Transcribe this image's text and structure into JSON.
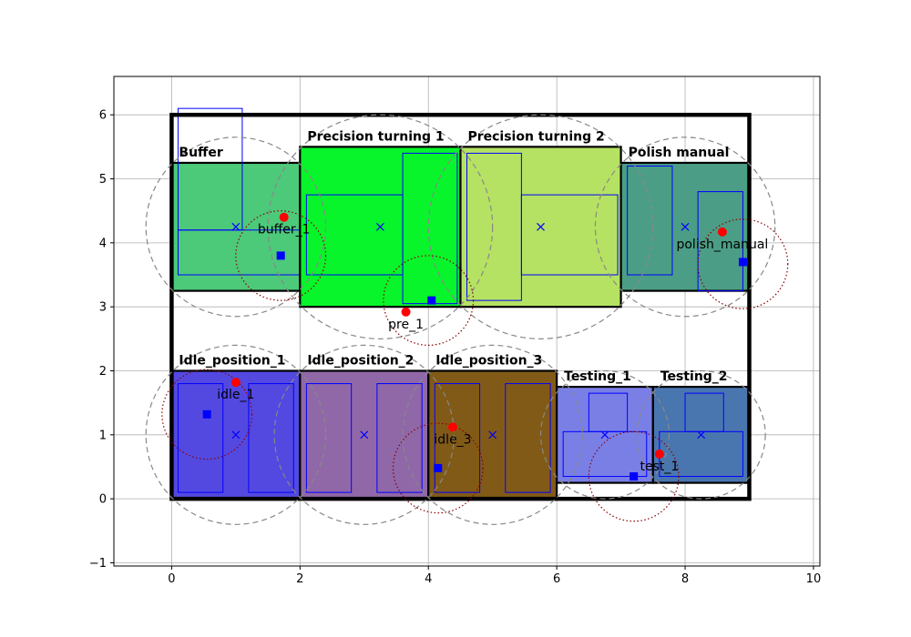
{
  "chart_data": {
    "type": "scatter",
    "title": "",
    "xlabel": "",
    "ylabel": "",
    "xlim": [
      -0.9,
      10.1
    ],
    "ylim": [
      -1.05,
      6.6
    ],
    "xticks": [
      0,
      2,
      4,
      6,
      8,
      10
    ],
    "yticks": [
      -1,
      0,
      1,
      2,
      3,
      4,
      5,
      6
    ],
    "grid": true,
    "colors": {
      "boundary": "#000000",
      "station_outline": "#0000ff",
      "center_marker": "#0000ff",
      "point_marker": "#ff0000",
      "square_marker": "#0000ff",
      "dashed_circle": "#888888",
      "dotted_circle": "#8b0000"
    },
    "boundary": {
      "x0": 0,
      "y0": 0,
      "x1": 9,
      "y1": 6
    },
    "zones": [
      {
        "name": "Buffer",
        "x0": 0,
        "y0": 3.25,
        "x1": 2,
        "y1": 5.25,
        "color": "#4dc97a",
        "center": [
          1,
          4.25
        ],
        "radius": 1.4,
        "parts": [
          [
            0.1,
            4.2,
            1,
            1.9
          ],
          [
            0.1,
            3.5,
            1.9,
            0.7
          ]
        ]
      },
      {
        "name": "Precision turning 1",
        "x0": 2,
        "y0": 3,
        "x1": 4.5,
        "y1": 5.5,
        "color": "#07f52a",
        "center": [
          3.25,
          4.25
        ],
        "radius": 1.75,
        "parts": [
          [
            2.1,
            3.5,
            1.5,
            1.25
          ],
          [
            3.6,
            3.05,
            0.85,
            2.35
          ]
        ]
      },
      {
        "name": "Precision turning 2",
        "x0": 4.5,
        "y0": 3,
        "x1": 7,
        "y1": 5.5,
        "color": "#b5e262",
        "center": [
          5.75,
          4.25
        ],
        "radius": 1.75,
        "parts": [
          [
            4.6,
            3.1,
            0.85,
            2.3
          ],
          [
            5.45,
            3.5,
            1.5,
            1.25
          ]
        ]
      },
      {
        "name": "Polish manual",
        "x0": 7,
        "y0": 3.25,
        "x1": 9,
        "y1": 5.25,
        "color": "#4b9e85",
        "center": [
          8,
          4.25
        ],
        "radius": 1.4,
        "parts": [
          [
            7.1,
            3.5,
            0.7,
            1.7
          ],
          [
            8.2,
            3.25,
            0.7,
            1.55
          ]
        ]
      },
      {
        "name": "Idle_position_1",
        "x0": 0,
        "y0": 0,
        "x1": 2,
        "y1": 2,
        "color": "#5349e0",
        "center": [
          1,
          1
        ],
        "radius": 1.4,
        "parts": [
          [
            0.1,
            0.1,
            0.7,
            1.7
          ],
          [
            1.2,
            0.1,
            0.7,
            1.7
          ]
        ]
      },
      {
        "name": "Idle_position_2",
        "x0": 2,
        "y0": 0,
        "x1": 4,
        "y1": 2,
        "color": "#9068a8",
        "center": [
          3,
          1
        ],
        "radius": 1.4,
        "parts": [
          [
            2.1,
            0.1,
            0.7,
            1.7
          ],
          [
            3.2,
            0.1,
            0.7,
            1.7
          ]
        ]
      },
      {
        "name": "Idle_position_3",
        "x0": 4,
        "y0": 0,
        "x1": 6,
        "y1": 2,
        "color": "#815a18",
        "center": [
          5,
          1
        ],
        "radius": 1.4,
        "parts": [
          [
            4.1,
            0.1,
            0.7,
            1.7
          ],
          [
            5.2,
            0.1,
            0.7,
            1.7
          ]
        ]
      },
      {
        "name": "Testing_1",
        "x0": 6,
        "y0": 0.25,
        "x1": 7.5,
        "y1": 1.75,
        "color": "#7a7fe6",
        "center": [
          6.75,
          1
        ],
        "radius": 1.0,
        "parts": [
          [
            6.5,
            1.05,
            0.6,
            0.6
          ],
          [
            6.1,
            0.35,
            1.3,
            0.7
          ]
        ]
      },
      {
        "name": "Testing_2",
        "x0": 7.5,
        "y0": 0.25,
        "x1": 9,
        "y1": 1.75,
        "color": "#4a76b0",
        "center": [
          8.25,
          1
        ],
        "radius": 1.0,
        "parts": [
          [
            8.0,
            1.05,
            0.6,
            0.6
          ],
          [
            7.6,
            0.35,
            1.3,
            0.7
          ]
        ]
      }
    ],
    "points": [
      {
        "label": "buffer_1",
        "red": [
          1.75,
          4.4
        ],
        "square": [
          1.7,
          3.8
        ],
        "circle_center": [
          1.7,
          3.8
        ],
        "radius": 0.7
      },
      {
        "label": "pre_1",
        "red": [
          3.65,
          2.92
        ],
        "square": [
          4.05,
          3.1
        ],
        "circle_center": [
          4.0,
          3.1
        ],
        "radius": 0.7
      },
      {
        "label": "polish_manual",
        "red": [
          8.58,
          4.17
        ],
        "square": [
          8.9,
          3.7
        ],
        "circle_center": [
          8.9,
          3.67
        ],
        "radius": 0.7
      },
      {
        "label": "idle_1",
        "red": [
          1.0,
          1.82
        ],
        "square": [
          0.55,
          1.32
        ],
        "circle_center": [
          0.55,
          1.32
        ],
        "radius": 0.7
      },
      {
        "label": "idle_3",
        "red": [
          4.38,
          1.12
        ],
        "square": [
          4.15,
          0.48
        ],
        "circle_center": [
          4.15,
          0.48
        ],
        "radius": 0.7
      },
      {
        "label": "test_1",
        "red": [
          7.6,
          0.7
        ],
        "square": [
          7.2,
          0.35
        ],
        "circle_center": [
          7.2,
          0.35
        ],
        "radius": 0.7
      }
    ]
  }
}
